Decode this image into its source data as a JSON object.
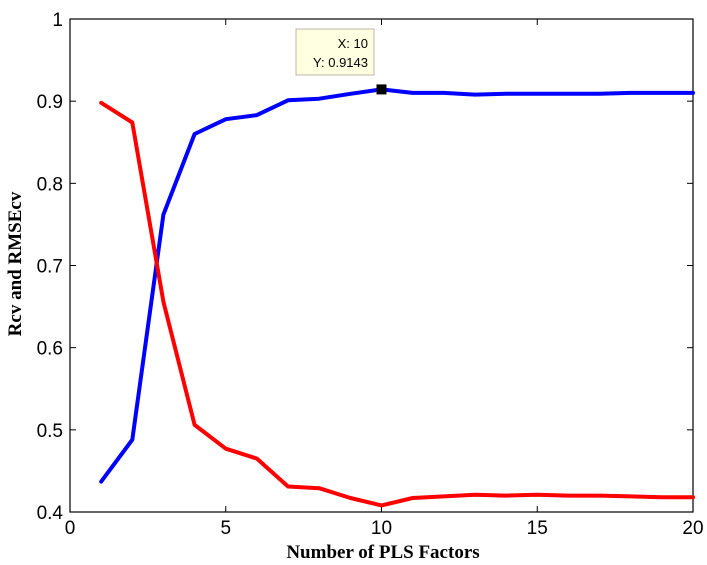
{
  "chart_data": {
    "type": "line",
    "xlabel": "Number of PLS Factors",
    "ylabel": "Rcv and RMSEcv",
    "xlim": [
      0,
      20
    ],
    "ylim": [
      0.4,
      1.0
    ],
    "xticks": [
      0,
      5,
      10,
      15,
      20
    ],
    "yticks": [
      0.4,
      0.5,
      0.6,
      0.7,
      0.8,
      0.9,
      1.0
    ],
    "xtick_labels": [
      "0",
      "5",
      "10",
      "15",
      "20"
    ],
    "ytick_labels": [
      "0.4",
      "0.5",
      "0.6",
      "0.7",
      "0.8",
      "0.9",
      "1"
    ],
    "grid": false,
    "series": [
      {
        "color": "#0000ff",
        "x": [
          1,
          2,
          3,
          4,
          5,
          6,
          7,
          8,
          9,
          10,
          11,
          12,
          13,
          14,
          15,
          16,
          17,
          18,
          19,
          20
        ],
        "values": [
          0.437,
          0.488,
          0.762,
          0.86,
          0.878,
          0.883,
          0.901,
          0.903,
          0.909,
          0.9143,
          0.91,
          0.91,
          0.908,
          0.909,
          0.909,
          0.909,
          0.909,
          0.91,
          0.91,
          0.91
        ]
      },
      {
        "color": "#ff0000",
        "x": [
          1,
          2,
          3,
          4,
          5,
          6,
          7,
          8,
          9,
          10,
          11,
          12,
          13,
          14,
          15,
          16,
          17,
          18,
          19,
          20
        ],
        "values": [
          0.898,
          0.874,
          0.656,
          0.506,
          0.477,
          0.465,
          0.431,
          0.429,
          0.417,
          0.408,
          0.417,
          0.419,
          0.421,
          0.42,
          0.421,
          0.42,
          0.42,
          0.419,
          0.418,
          0.418
        ]
      }
    ],
    "datatip": {
      "x": 10,
      "y": 0.9143,
      "line1": "X: 10",
      "line2": "Y: 0.9143"
    }
  }
}
